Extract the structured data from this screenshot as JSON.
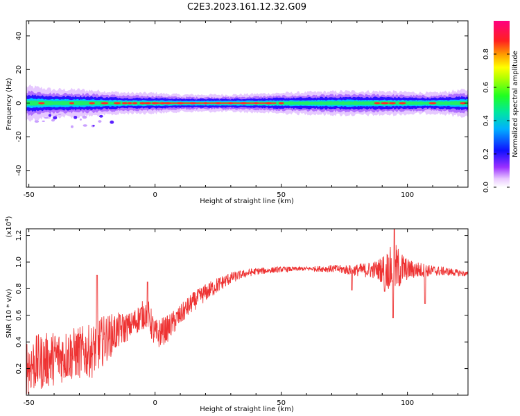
{
  "title": "C2E3.2023.161.12.32.G09",
  "colors": {
    "snr_line": "#ee3333",
    "background": "#ffffff",
    "axis": "#000000"
  },
  "chart_data": [
    {
      "type": "heatmap",
      "name": "spectrogram",
      "xlabel": "Height of straight line (km)",
      "ylabel": "Frequency (Hz)",
      "xlim": [
        -51,
        124
      ],
      "ylim": [
        -50,
        49
      ],
      "xticks": [
        -50,
        0,
        50,
        100
      ],
      "xtick_labels": [
        "-50",
        "0",
        "50",
        "100"
      ],
      "yticks": [
        40,
        20,
        0,
        -20,
        -40
      ],
      "ytick_labels": [
        "40",
        "20",
        "0",
        "-20",
        "-40"
      ],
      "colorbar": {
        "label": "Normalized spectral amplitude",
        "range": [
          0,
          1
        ],
        "ticks": [
          0.0,
          0.2,
          0.4,
          0.6,
          0.8
        ],
        "tick_labels": [
          "0.0",
          "0.2",
          "0.4",
          "0.6",
          "0.8"
        ]
      },
      "band_center_hz": 0,
      "band_halfwidth_hz": [
        [
          -51,
          5
        ],
        [
          -45,
          4.5
        ],
        [
          -40,
          4
        ],
        [
          -30,
          4
        ],
        [
          -20,
          3.5
        ],
        [
          -10,
          3
        ],
        [
          0,
          3
        ],
        [
          10,
          2.5
        ],
        [
          30,
          2.5
        ],
        [
          50,
          3
        ],
        [
          75,
          3.5
        ],
        [
          90,
          3.5
        ],
        [
          110,
          3
        ],
        [
          124,
          4
        ]
      ],
      "hot_spots_km": [
        -45,
        -33,
        -25,
        -20,
        -15,
        -12,
        -10,
        -8,
        -5,
        -3,
        0,
        3,
        5,
        10,
        15,
        20,
        25,
        30,
        35,
        40,
        45,
        50,
        88,
        91,
        94,
        98,
        110,
        122
      ]
    },
    {
      "type": "line",
      "name": "snr",
      "xlabel": "Height of straight line (km)",
      "ylabel": "SNR (10 * v/v)",
      "scale_label": "(x10^4)",
      "xlim": [
        -51,
        124
      ],
      "ylim": [
        0.0,
        1.25
      ],
      "xticks": [
        -50,
        0,
        50,
        100
      ],
      "xtick_labels": [
        "-50",
        "0",
        "50",
        "100"
      ],
      "yticks": [
        0.2,
        0.4,
        0.6,
        0.8,
        1.0,
        1.2
      ],
      "ytick_labels": [
        "0.2",
        "0.4",
        "0.6",
        "0.8",
        "1.0",
        "1.2"
      ],
      "trend": [
        [
          -51,
          0.22
        ],
        [
          -45,
          0.25
        ],
        [
          -40,
          0.28
        ],
        [
          -35,
          0.3
        ],
        [
          -30,
          0.32
        ],
        [
          -25,
          0.33
        ],
        [
          -20,
          0.42
        ],
        [
          -15,
          0.48
        ],
        [
          -10,
          0.52
        ],
        [
          -5,
          0.6
        ],
        [
          -3,
          0.62
        ],
        [
          0,
          0.45
        ],
        [
          5,
          0.5
        ],
        [
          10,
          0.6
        ],
        [
          15,
          0.7
        ],
        [
          20,
          0.77
        ],
        [
          25,
          0.83
        ],
        [
          30,
          0.88
        ],
        [
          35,
          0.91
        ],
        [
          40,
          0.93
        ],
        [
          50,
          0.945
        ],
        [
          60,
          0.95
        ],
        [
          70,
          0.95
        ],
        [
          78,
          0.94
        ],
        [
          85,
          0.94
        ],
        [
          95,
          0.95
        ],
        [
          105,
          0.94
        ],
        [
          115,
          0.93
        ],
        [
          124,
          0.91
        ]
      ],
      "noise_amplitude": [
        [
          -51,
          0.22
        ],
        [
          -35,
          0.2
        ],
        [
          -22,
          0.2
        ],
        [
          -10,
          0.1
        ],
        [
          0,
          0.12
        ],
        [
          10,
          0.08
        ],
        [
          25,
          0.06
        ],
        [
          35,
          0.03
        ],
        [
          60,
          0.015
        ],
        [
          78,
          0.04
        ],
        [
          88,
          0.07
        ],
        [
          95,
          0.2
        ],
        [
          100,
          0.08
        ],
        [
          110,
          0.04
        ],
        [
          124,
          0.02
        ]
      ],
      "features": [
        {
          "x": -23,
          "value": 0.9
        },
        {
          "x": -3,
          "value": 0.85
        },
        {
          "x": 78,
          "value": 0.79
        },
        {
          "x": 91,
          "value": 0.78
        },
        {
          "x": 94.3,
          "value": 0.58
        },
        {
          "x": 94.8,
          "value": 1.25
        },
        {
          "x": 107,
          "value": 0.69
        }
      ]
    }
  ]
}
